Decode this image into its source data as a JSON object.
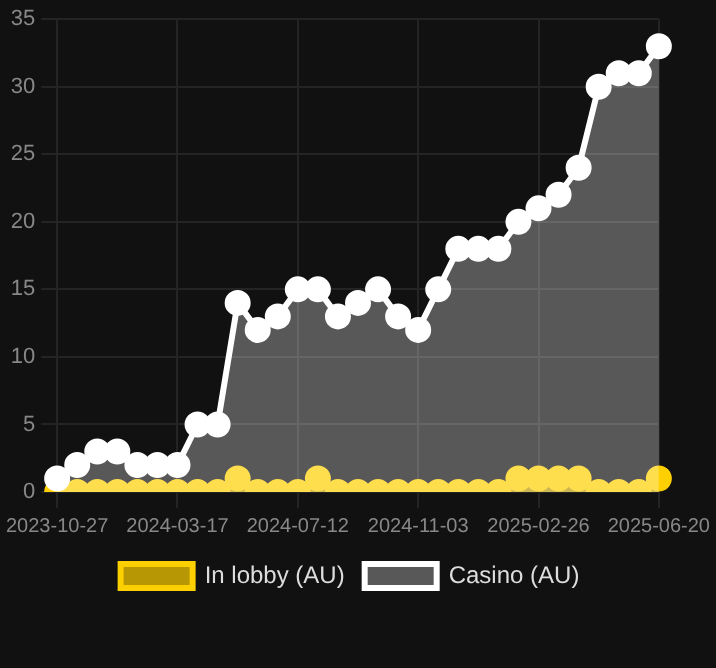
{
  "chart_data": {
    "type": "area",
    "categories": [
      "2023-10-27",
      null,
      null,
      null,
      null,
      null,
      "2024-03-17",
      null,
      null,
      null,
      null,
      null,
      "2024-07-12",
      null,
      null,
      null,
      null,
      null,
      "2024-11-03",
      null,
      null,
      null,
      null,
      null,
      "2025-02-26",
      null,
      null,
      null,
      null,
      null,
      "2025-06-20"
    ],
    "series": [
      {
        "name": "In lobby (AU)",
        "color": "#ffd000",
        "values": [
          0,
          0,
          0,
          0,
          0,
          0,
          0,
          0,
          0,
          1,
          0,
          0,
          0,
          1,
          0,
          0,
          0,
          0,
          0,
          0,
          0,
          0,
          0,
          1,
          1,
          1,
          1,
          0,
          0,
          0,
          1
        ]
      },
      {
        "name": "Casino (AU)",
        "color": "#ffffff",
        "values": [
          1,
          2,
          3,
          3,
          2,
          2,
          2,
          5,
          5,
          14,
          12,
          13,
          15,
          15,
          13,
          14,
          15,
          13,
          12,
          15,
          18,
          18,
          18,
          20,
          21,
          22,
          24,
          30,
          31,
          31,
          33
        ]
      }
    ],
    "ylim": [
      0,
      35
    ],
    "yticks": [
      0,
      5,
      10,
      15,
      20,
      25,
      30,
      35
    ],
    "grid": true,
    "legend": "bottom",
    "marker": "circle"
  }
}
